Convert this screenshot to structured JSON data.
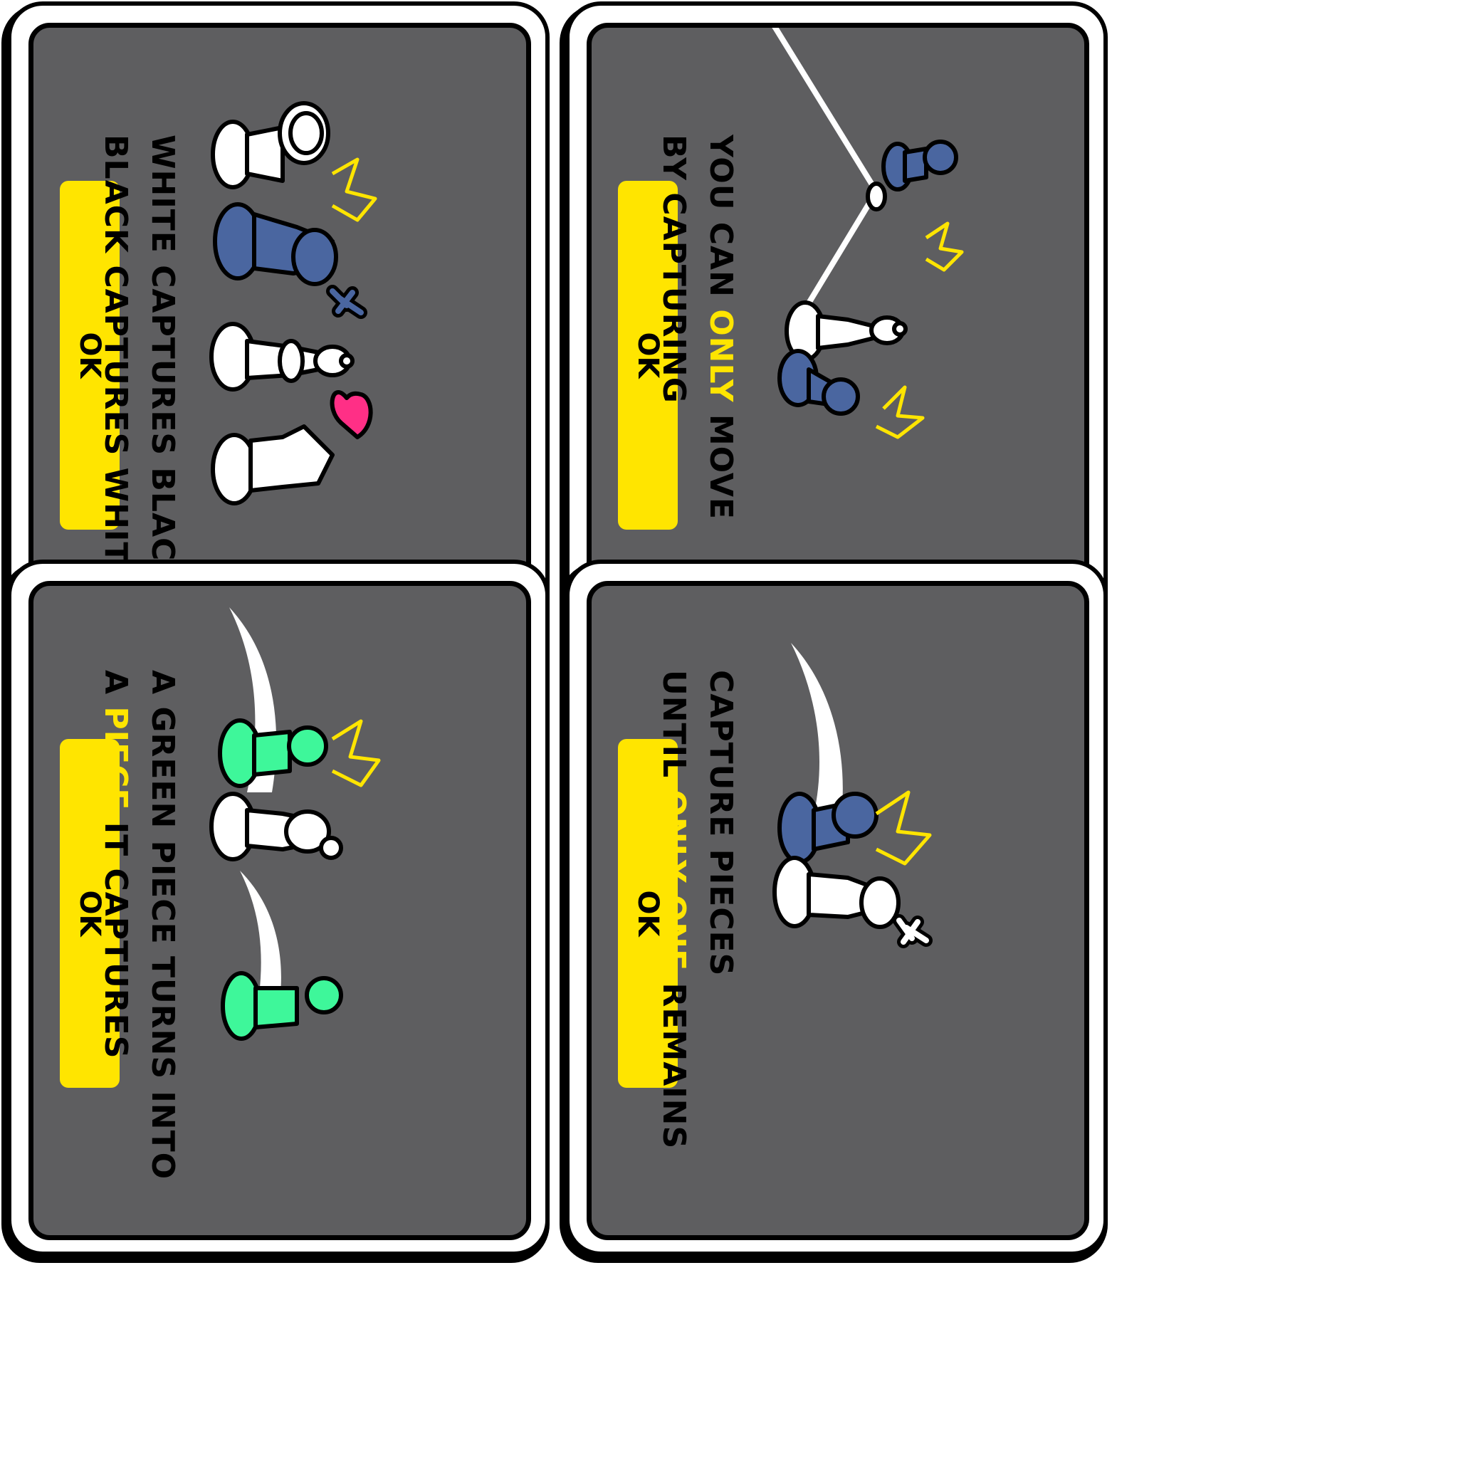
{
  "colors": {
    "panel": "#5e5e60",
    "button": "#ffe500",
    "highlight": "#ffe500",
    "blue_piece": "#4a66a0",
    "green_piece": "#3ef79a",
    "heart": "#ff2f86"
  },
  "cards": [
    {
      "ok_label": "OK",
      "lines": [
        {
          "parts": [
            {
              "text": "WHITE CAPTURES BLACK,",
              "hl": false
            }
          ]
        },
        {
          "parts": [
            {
              "text": "BLACK CAPTURES WHITE",
              "hl": false
            }
          ]
        }
      ]
    },
    {
      "ok_label": "OK",
      "lines": [
        {
          "parts": [
            {
              "text": "YOU CAN ",
              "hl": false
            },
            {
              "text": "ONLY",
              "hl": true
            },
            {
              "text": " MOVE",
              "hl": false
            }
          ]
        },
        {
          "parts": [
            {
              "text": "BY CAPTURING",
              "hl": false
            }
          ]
        }
      ]
    },
    {
      "ok_label": "OK",
      "lines": [
        {
          "parts": [
            {
              "text": "A GREEN PIECE TURNS INTO",
              "hl": false
            }
          ]
        },
        {
          "parts": [
            {
              "text": "A ",
              "hl": false
            },
            {
              "text": "PIECE",
              "hl": true
            },
            {
              "text": " IT CAPTURES",
              "hl": false
            }
          ]
        }
      ]
    },
    {
      "ok_label": "OK",
      "lines": [
        {
          "parts": [
            {
              "text": "CAPTURE PIECES",
              "hl": false
            }
          ]
        },
        {
          "parts": [
            {
              "text": "UNTIL ",
              "hl": false
            },
            {
              "text": "ONLY ONE",
              "hl": true
            },
            {
              "text": " REMAINS",
              "hl": false
            }
          ]
        }
      ]
    }
  ]
}
